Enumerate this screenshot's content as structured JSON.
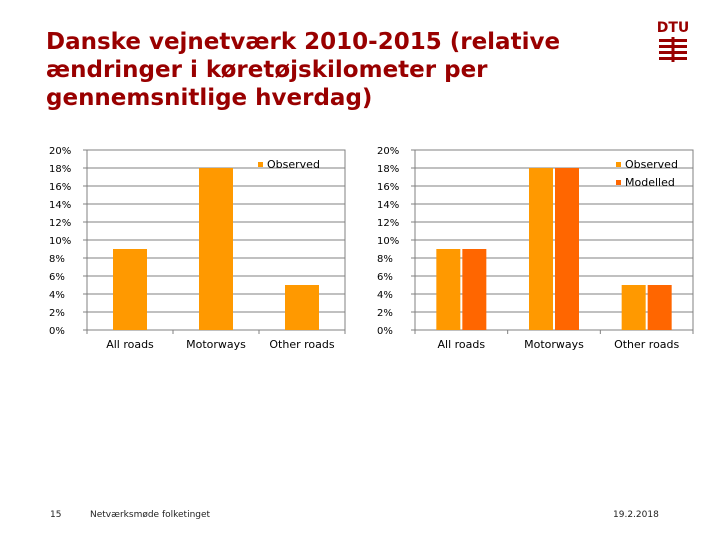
{
  "slide": {
    "title": "Danske vejnetværk 2010-2015 (relative\nændringer i køretøjskilometer per\ngennemsnitlige hverdag)",
    "logo_text": "DTU",
    "page_number": "15",
    "footer_text": "Netværksmøde folketinget",
    "date": "19.2.2018"
  },
  "colors": {
    "title": "#990000",
    "observed": "#ff9900",
    "modelled": "#ff6600",
    "grid": "#808080",
    "logo": "#990000"
  },
  "chart_data": [
    {
      "type": "bar",
      "categories": [
        "All roads",
        "Motorways",
        "Other roads"
      ],
      "series": [
        {
          "name": "Observed",
          "values": [
            9,
            18,
            5
          ]
        }
      ],
      "ylim": [
        0,
        20
      ],
      "yticks": [
        "0%",
        "2%",
        "4%",
        "6%",
        "8%",
        "10%",
        "12%",
        "14%",
        "16%",
        "18%",
        "20%"
      ],
      "grid": true,
      "legend": "top-right"
    },
    {
      "type": "bar",
      "categories": [
        "All roads",
        "Motorways",
        "Other roads"
      ],
      "series": [
        {
          "name": "Observed",
          "values": [
            9,
            18,
            5
          ]
        },
        {
          "name": "Modelled",
          "values": [
            9,
            18,
            5
          ]
        }
      ],
      "ylim": [
        0,
        20
      ],
      "yticks": [
        "0%",
        "2%",
        "4%",
        "6%",
        "8%",
        "10%",
        "12%",
        "14%",
        "16%",
        "18%",
        "20%"
      ],
      "grid": true,
      "legend": "top-right"
    }
  ]
}
